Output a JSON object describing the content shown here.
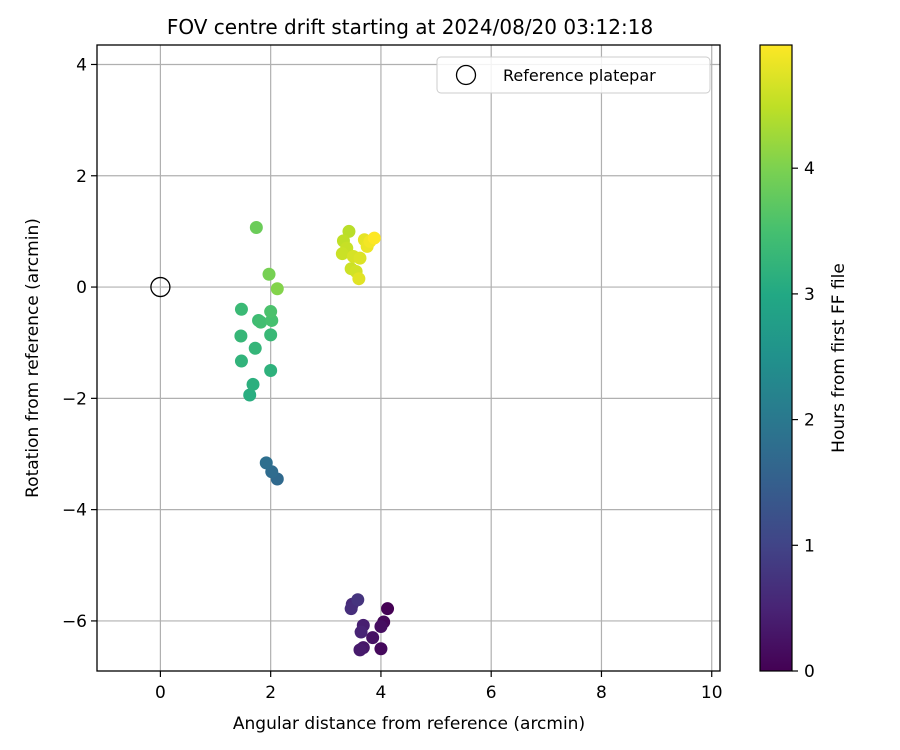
{
  "chart_data": {
    "type": "scatter",
    "title": "FOV centre drift starting at 2024/08/20 03:12:18",
    "xlabel": "Angular distance from reference (arcmin)",
    "ylabel": "Rotation from reference (arcmin)",
    "xlim": [
      -1.15,
      10.15
    ],
    "ylim": [
      -6.9,
      4.35
    ],
    "xticks": [
      0,
      2,
      4,
      6,
      8,
      10
    ],
    "yticks": [
      -6,
      -4,
      -2,
      0,
      2,
      4
    ],
    "grid": true,
    "legend": {
      "position": "top-right",
      "entries": [
        "Reference platepar"
      ]
    },
    "reference_point": {
      "name": "Reference platepar",
      "x": 0,
      "y": 0,
      "marker": "open-circle"
    },
    "colorbar": {
      "label": "Hours from first FF file",
      "colormap": "viridis",
      "min": 0,
      "max": 4.98,
      "ticks": [
        0,
        1,
        2,
        3,
        4
      ]
    },
    "points": [
      {
        "x": 4.12,
        "y": -5.78,
        "c": 0.0
      },
      {
        "x": 4.05,
        "y": -6.02,
        "c": 0.08
      },
      {
        "x": 4.0,
        "y": -6.5,
        "c": 0.12
      },
      {
        "x": 4.0,
        "y": -6.1,
        "c": 0.18
      },
      {
        "x": 3.85,
        "y": -6.3,
        "c": 0.24
      },
      {
        "x": 3.68,
        "y": -6.48,
        "c": 0.3
      },
      {
        "x": 3.62,
        "y": -6.52,
        "c": 0.36
      },
      {
        "x": 3.68,
        "y": -6.08,
        "c": 0.42
      },
      {
        "x": 3.64,
        "y": -6.2,
        "c": 0.5
      },
      {
        "x": 3.48,
        "y": -5.7,
        "c": 0.58
      },
      {
        "x": 3.46,
        "y": -5.78,
        "c": 0.66
      },
      {
        "x": 3.58,
        "y": -5.62,
        "c": 0.74
      },
      {
        "x": 2.12,
        "y": -3.45,
        "c": 1.7
      },
      {
        "x": 2.02,
        "y": -3.32,
        "c": 1.76
      },
      {
        "x": 1.92,
        "y": -3.16,
        "c": 1.82
      },
      {
        "x": 1.62,
        "y": -1.94,
        "c": 3.1
      },
      {
        "x": 1.68,
        "y": -1.75,
        "c": 3.14
      },
      {
        "x": 2.0,
        "y": -1.5,
        "c": 3.18
      },
      {
        "x": 1.47,
        "y": -1.33,
        "c": 3.22
      },
      {
        "x": 1.72,
        "y": -1.1,
        "c": 3.26
      },
      {
        "x": 1.46,
        "y": -0.88,
        "c": 3.3
      },
      {
        "x": 2.0,
        "y": -0.86,
        "c": 3.33
      },
      {
        "x": 1.47,
        "y": -0.4,
        "c": 3.36
      },
      {
        "x": 1.78,
        "y": -0.6,
        "c": 3.4
      },
      {
        "x": 1.82,
        "y": -0.63,
        "c": 3.45
      },
      {
        "x": 2.02,
        "y": -0.6,
        "c": 3.5
      },
      {
        "x": 2.0,
        "y": -0.44,
        "c": 3.55
      },
      {
        "x": 1.74,
        "y": 1.07,
        "c": 3.85
      },
      {
        "x": 1.97,
        "y": 0.23,
        "c": 3.95
      },
      {
        "x": 2.12,
        "y": -0.03,
        "c": 4.05
      },
      {
        "x": 3.42,
        "y": 1.0,
        "c": 4.45
      },
      {
        "x": 3.32,
        "y": 0.83,
        "c": 4.5
      },
      {
        "x": 3.38,
        "y": 0.7,
        "c": 4.55
      },
      {
        "x": 3.3,
        "y": 0.6,
        "c": 4.58
      },
      {
        "x": 3.46,
        "y": 0.33,
        "c": 4.6
      },
      {
        "x": 3.55,
        "y": 0.28,
        "c": 4.64
      },
      {
        "x": 3.5,
        "y": 0.55,
        "c": 4.68
      },
      {
        "x": 3.62,
        "y": 0.52,
        "c": 4.72
      },
      {
        "x": 3.6,
        "y": 0.15,
        "c": 4.76
      },
      {
        "x": 3.7,
        "y": 0.85,
        "c": 4.8
      },
      {
        "x": 3.75,
        "y": 0.73,
        "c": 4.84
      },
      {
        "x": 3.8,
        "y": 0.82,
        "c": 4.9
      },
      {
        "x": 3.88,
        "y": 0.88,
        "c": 4.98
      }
    ]
  }
}
